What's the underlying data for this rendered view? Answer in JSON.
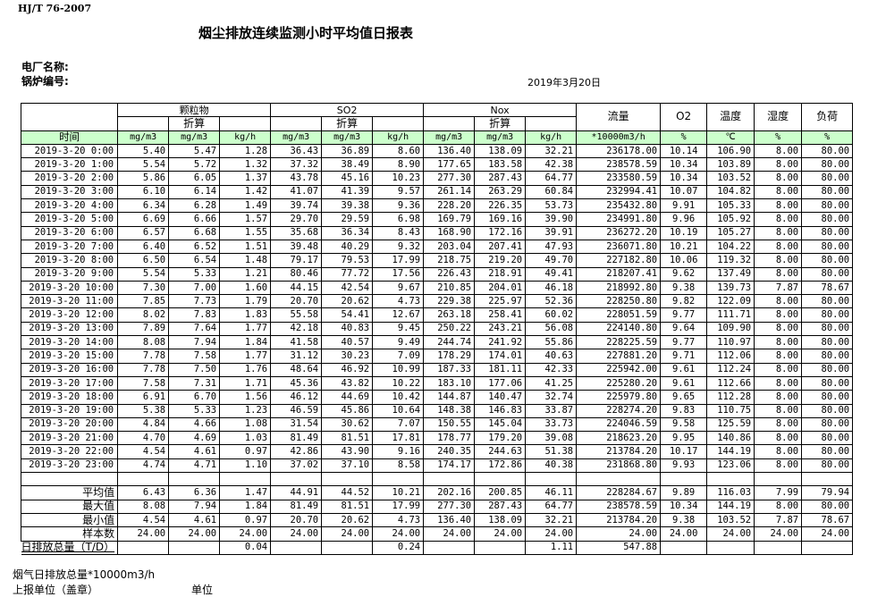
{
  "standard": "HJ/T  76-2007",
  "title": "烟尘排放连续监测小时平均值日报表",
  "plant_label": "电厂名称:",
  "boiler_label": "锅炉编号:",
  "report_date": "2019年3月20日",
  "header": {
    "group_particulate": "颗粒物",
    "group_so2": "SO2",
    "group_nox": "Nox",
    "converted": "折算",
    "flow": "流量",
    "o2": "O2",
    "temperature": "温度",
    "humidity": "湿度",
    "load": "负荷",
    "time": "时间",
    "units": [
      "mg/m3",
      "mg/m3",
      "kg/h",
      "mg/m3",
      "mg/m3",
      "kg/h",
      "mg/m3",
      "mg/m3",
      "kg/h",
      "*10000m3/h",
      "%",
      "℃",
      "%",
      "%"
    ]
  },
  "colors": {
    "header_green": "#ccffcc"
  },
  "rows": [
    [
      "2019-3-20 0:00",
      "5.40",
      "5.47",
      "1.28",
      "36.43",
      "36.89",
      "8.60",
      "136.40",
      "138.09",
      "32.21",
      "236178.00",
      "10.14",
      "106.90",
      "8.00",
      "80.00"
    ],
    [
      "2019-3-20 1:00",
      "5.54",
      "5.72",
      "1.32",
      "37.32",
      "38.49",
      "8.90",
      "177.65",
      "183.58",
      "42.38",
      "238578.59",
      "10.34",
      "103.89",
      "8.00",
      "80.00"
    ],
    [
      "2019-3-20 2:00",
      "5.86",
      "6.05",
      "1.37",
      "43.78",
      "45.16",
      "10.23",
      "277.30",
      "287.43",
      "64.77",
      "233580.59",
      "10.34",
      "103.52",
      "8.00",
      "80.00"
    ],
    [
      "2019-3-20 3:00",
      "6.10",
      "6.14",
      "1.42",
      "41.07",
      "41.39",
      "9.57",
      "261.14",
      "263.29",
      "60.84",
      "232994.41",
      "10.07",
      "104.82",
      "8.00",
      "80.00"
    ],
    [
      "2019-3-20 4:00",
      "6.34",
      "6.28",
      "1.49",
      "39.74",
      "39.38",
      "9.36",
      "228.20",
      "226.35",
      "53.73",
      "235432.80",
      "9.91",
      "105.33",
      "8.00",
      "80.00"
    ],
    [
      "2019-3-20 5:00",
      "6.69",
      "6.66",
      "1.57",
      "29.70",
      "29.59",
      "6.98",
      "169.79",
      "169.16",
      "39.90",
      "234991.80",
      "9.96",
      "105.92",
      "8.00",
      "80.00"
    ],
    [
      "2019-3-20 6:00",
      "6.57",
      "6.68",
      "1.55",
      "35.68",
      "36.34",
      "8.43",
      "168.90",
      "172.16",
      "39.91",
      "236272.20",
      "10.19",
      "105.27",
      "8.00",
      "80.00"
    ],
    [
      "2019-3-20 7:00",
      "6.40",
      "6.52",
      "1.51",
      "39.48",
      "40.29",
      "9.32",
      "203.04",
      "207.41",
      "47.93",
      "236071.80",
      "10.21",
      "104.22",
      "8.00",
      "80.00"
    ],
    [
      "2019-3-20 8:00",
      "6.50",
      "6.54",
      "1.48",
      "79.17",
      "79.53",
      "17.99",
      "218.75",
      "219.20",
      "49.70",
      "227182.80",
      "10.06",
      "119.32",
      "8.00",
      "80.00"
    ],
    [
      "2019-3-20 9:00",
      "5.54",
      "5.33",
      "1.21",
      "80.46",
      "77.72",
      "17.56",
      "226.43",
      "218.91",
      "49.41",
      "218207.41",
      "9.62",
      "137.49",
      "8.00",
      "80.00"
    ],
    [
      "2019-3-20 10:00",
      "7.30",
      "7.00",
      "1.60",
      "44.15",
      "42.54",
      "9.67",
      "210.85",
      "204.01",
      "46.18",
      "218992.80",
      "9.38",
      "139.73",
      "7.87",
      "78.67"
    ],
    [
      "2019-3-20 11:00",
      "7.85",
      "7.73",
      "1.79",
      "20.70",
      "20.62",
      "4.73",
      "229.38",
      "225.97",
      "52.36",
      "228250.80",
      "9.82",
      "122.09",
      "8.00",
      "80.00"
    ],
    [
      "2019-3-20 12:00",
      "8.02",
      "7.83",
      "1.83",
      "55.58",
      "54.41",
      "12.67",
      "263.18",
      "258.41",
      "60.02",
      "228051.59",
      "9.77",
      "111.71",
      "8.00",
      "80.00"
    ],
    [
      "2019-3-20 13:00",
      "7.89",
      "7.64",
      "1.77",
      "42.18",
      "40.83",
      "9.45",
      "250.22",
      "243.21",
      "56.08",
      "224140.80",
      "9.64",
      "109.90",
      "8.00",
      "80.00"
    ],
    [
      "2019-3-20 14:00",
      "8.08",
      "7.94",
      "1.84",
      "41.58",
      "40.57",
      "9.49",
      "244.74",
      "241.92",
      "55.86",
      "228225.59",
      "9.77",
      "110.97",
      "8.00",
      "80.00"
    ],
    [
      "2019-3-20 15:00",
      "7.78",
      "7.58",
      "1.77",
      "31.12",
      "30.23",
      "7.09",
      "178.29",
      "174.01",
      "40.63",
      "227881.20",
      "9.71",
      "112.06",
      "8.00",
      "80.00"
    ],
    [
      "2019-3-20 16:00",
      "7.78",
      "7.50",
      "1.76",
      "48.64",
      "46.92",
      "10.99",
      "187.33",
      "181.11",
      "42.33",
      "225942.00",
      "9.61",
      "112.24",
      "8.00",
      "80.00"
    ],
    [
      "2019-3-20 17:00",
      "7.58",
      "7.31",
      "1.71",
      "45.36",
      "43.82",
      "10.22",
      "183.10",
      "177.06",
      "41.25",
      "225280.20",
      "9.61",
      "112.66",
      "8.00",
      "80.00"
    ],
    [
      "2019-3-20 18:00",
      "6.91",
      "6.70",
      "1.56",
      "46.12",
      "44.69",
      "10.42",
      "144.87",
      "140.47",
      "32.74",
      "225979.80",
      "9.65",
      "112.28",
      "8.00",
      "80.00"
    ],
    [
      "2019-3-20 19:00",
      "5.38",
      "5.33",
      "1.23",
      "46.59",
      "45.86",
      "10.64",
      "148.38",
      "146.83",
      "33.87",
      "228274.20",
      "9.83",
      "110.75",
      "8.00",
      "80.00"
    ],
    [
      "2019-3-20 20:00",
      "4.84",
      "4.66",
      "1.08",
      "31.54",
      "30.62",
      "7.07",
      "150.55",
      "145.04",
      "33.73",
      "224046.59",
      "9.58",
      "125.59",
      "8.00",
      "80.00"
    ],
    [
      "2019-3-20 21:00",
      "4.70",
      "4.69",
      "1.03",
      "81.49",
      "81.51",
      "17.81",
      "178.77",
      "179.20",
      "39.08",
      "218623.20",
      "9.95",
      "140.86",
      "8.00",
      "80.00"
    ],
    [
      "2019-3-20 22:00",
      "4.54",
      "4.61",
      "0.97",
      "42.86",
      "43.90",
      "9.16",
      "240.35",
      "244.63",
      "51.38",
      "213784.20",
      "10.17",
      "144.19",
      "8.00",
      "80.00"
    ],
    [
      "2019-3-20 23:00",
      "4.74",
      "4.71",
      "1.10",
      "37.02",
      "37.10",
      "8.58",
      "174.17",
      "172.86",
      "40.38",
      "231868.80",
      "9.93",
      "123.06",
      "8.00",
      "80.00"
    ]
  ],
  "stats": [
    [
      "平均值",
      "6.43",
      "6.36",
      "1.47",
      "44.91",
      "44.52",
      "10.21",
      "202.16",
      "200.85",
      "46.11",
      "228284.67",
      "9.89",
      "116.03",
      "7.99",
      "79.94"
    ],
    [
      "最大值",
      "8.08",
      "7.94",
      "1.84",
      "81.49",
      "81.51",
      "17.99",
      "277.30",
      "287.43",
      "64.77",
      "238578.59",
      "10.34",
      "144.19",
      "8.00",
      "80.00"
    ],
    [
      "最小值",
      "4.54",
      "4.61",
      "0.97",
      "20.70",
      "20.62",
      "4.73",
      "136.40",
      "138.09",
      "32.21",
      "213784.20",
      "9.38",
      "103.52",
      "7.87",
      "78.67"
    ],
    [
      "样本数",
      "24.00",
      "24.00",
      "24.00",
      "24.00",
      "24.00",
      "24.00",
      "24.00",
      "24.00",
      "24.00",
      "24.00",
      "24.00",
      "24.00",
      "24.00",
      "24.00"
    ]
  ],
  "daily_total": [
    "日排放总量（T/D）",
    "",
    "",
    "0.04",
    "",
    "",
    "0.24",
    "",
    "",
    "1.11",
    "547.88",
    "",
    "",
    "",
    ""
  ],
  "footer": {
    "flue_gas_total": "烟气日排放总量*10000m3/h",
    "reporting_unit": "上报单位（盖章）",
    "unit": "单位"
  }
}
